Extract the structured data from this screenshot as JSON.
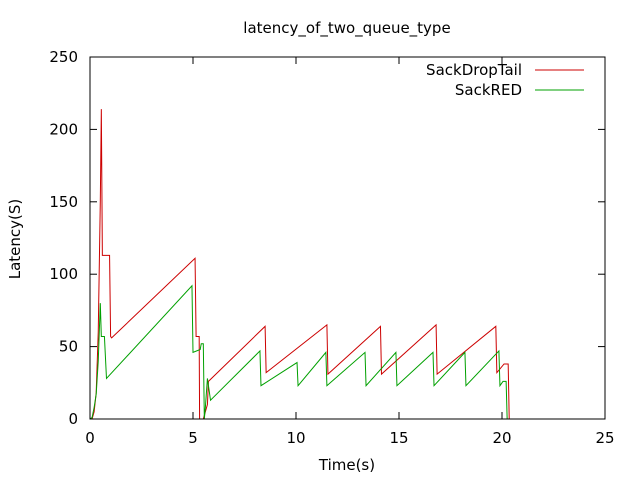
{
  "chart_data": {
    "type": "line",
    "title": "latency_of_two_queue_type",
    "xlabel": "Time(s)",
    "ylabel": "Latency(S)",
    "xlim": [
      0,
      25
    ],
    "ylim": [
      0,
      250
    ],
    "xticks": [
      0,
      5,
      10,
      15,
      20,
      25
    ],
    "yticks": [
      0,
      50,
      100,
      150,
      200,
      250
    ],
    "grid": false,
    "legend_position": "top-right",
    "series": [
      {
        "name": "SackDropTail",
        "color": "#cc0000",
        "points": [
          [
            0.0,
            0
          ],
          [
            0.1,
            0
          ],
          [
            0.2,
            5
          ],
          [
            0.3,
            18
          ],
          [
            0.4,
            60
          ],
          [
            0.5,
            150
          ],
          [
            0.55,
            214
          ],
          [
            0.6,
            113
          ],
          [
            0.95,
            113
          ],
          [
            1.0,
            57
          ],
          [
            1.05,
            56
          ],
          [
            5.1,
            111
          ],
          [
            5.15,
            57
          ],
          [
            5.3,
            57
          ],
          [
            5.32,
            0
          ],
          [
            5.5,
            0
          ],
          [
            5.7,
            10
          ],
          [
            5.75,
            26
          ],
          [
            8.5,
            64
          ],
          [
            8.55,
            32
          ],
          [
            11.5,
            65
          ],
          [
            11.55,
            31
          ],
          [
            14.1,
            64
          ],
          [
            14.15,
            31
          ],
          [
            16.8,
            65
          ],
          [
            16.85,
            31
          ],
          [
            19.7,
            64
          ],
          [
            19.75,
            32
          ],
          [
            20.1,
            38
          ],
          [
            20.3,
            38
          ],
          [
            20.35,
            0
          ],
          [
            22.0,
            0
          ]
        ]
      },
      {
        "name": "SackRED",
        "color": "#00a000",
        "points": [
          [
            0.0,
            0
          ],
          [
            0.1,
            1
          ],
          [
            0.2,
            8
          ],
          [
            0.3,
            17
          ],
          [
            0.4,
            40
          ],
          [
            0.5,
            80
          ],
          [
            0.55,
            57
          ],
          [
            0.7,
            57
          ],
          [
            0.8,
            28
          ],
          [
            4.95,
            92
          ],
          [
            5.0,
            46
          ],
          [
            5.35,
            48
          ],
          [
            5.4,
            52
          ],
          [
            5.5,
            52
          ],
          [
            5.55,
            0
          ],
          [
            5.6,
            8
          ],
          [
            5.7,
            28
          ],
          [
            5.85,
            13
          ],
          [
            8.25,
            47
          ],
          [
            8.3,
            23
          ],
          [
            10.05,
            39
          ],
          [
            10.1,
            23
          ],
          [
            11.45,
            46
          ],
          [
            11.5,
            23
          ],
          [
            13.35,
            46
          ],
          [
            13.4,
            23
          ],
          [
            14.85,
            46
          ],
          [
            14.9,
            23
          ],
          [
            16.65,
            46
          ],
          [
            16.7,
            23
          ],
          [
            18.2,
            46
          ],
          [
            18.25,
            23
          ],
          [
            19.85,
            47
          ],
          [
            19.9,
            23
          ],
          [
            20.05,
            26
          ],
          [
            20.2,
            26
          ],
          [
            20.25,
            0
          ],
          [
            22.0,
            0
          ]
        ]
      }
    ]
  }
}
